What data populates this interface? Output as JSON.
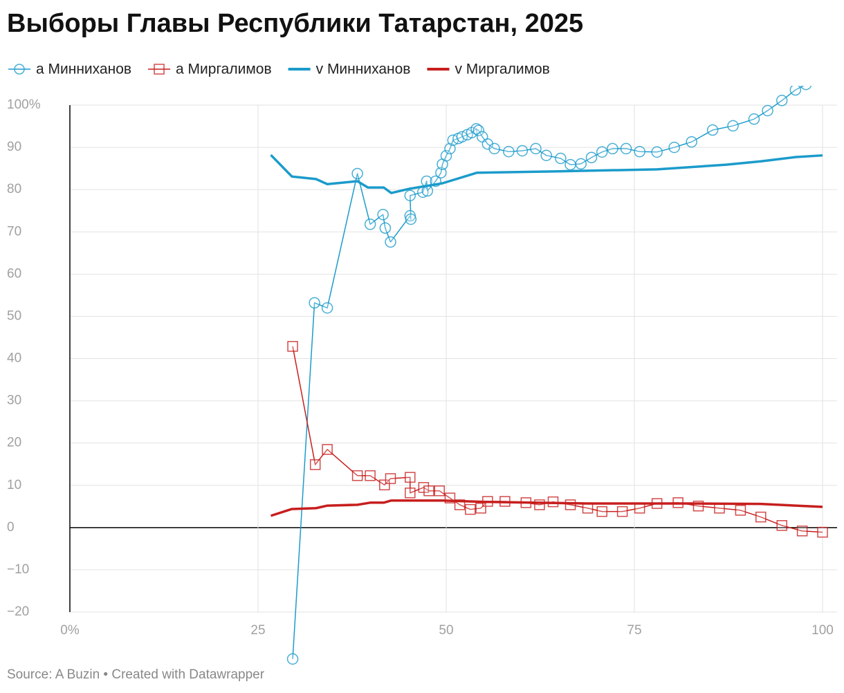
{
  "chart_data": {
    "type": "line",
    "title": "Выборы Главы Республики Татарстан, 2025",
    "source": "Source: A Buzin • Created with Datawrapper",
    "xlim": [
      0,
      100
    ],
    "xticks": [
      {
        "value": 0,
        "label": "0%"
      },
      25,
      50,
      75,
      100
    ],
    "ylim": [
      -20,
      100
    ],
    "yticks": [
      {
        "value": -20,
        "label": "−20"
      },
      {
        "value": -10,
        "label": "−10"
      },
      0,
      10,
      20,
      30,
      40,
      50,
      60,
      70,
      80,
      90,
      {
        "value": 100,
        "label": "100%"
      }
    ],
    "grid": true,
    "legend": "top",
    "series": [
      {
        "name": "а Минниханов",
        "color": "#1b9bcb",
        "marker": "circle",
        "x": [
          29.6,
          32.5,
          34.2,
          38.2,
          39.9,
          41.6,
          41.9,
          42.6,
          45.2,
          45.3,
          45.2,
          46.9,
          47.4,
          47.5,
          48.6,
          49.3,
          49.5,
          50,
          50.5,
          50.9,
          51.6,
          52.1,
          52.8,
          53.4,
          54,
          54.3,
          54.8,
          55.5,
          56.4,
          58.3,
          60.1,
          61.9,
          63.3,
          65.2,
          66.5,
          67.9,
          69.3,
          70.7,
          72.1,
          73.9,
          75.7,
          78,
          80.3,
          82.6,
          85.4,
          88.1,
          90.9,
          92.7,
          94.6,
          96.4,
          97.8
        ],
        "values": [
          -31.1,
          53.2,
          52.0,
          83.8,
          71.8,
          74.1,
          70.9,
          67.6,
          73.8,
          73.0,
          78.6,
          79.4,
          82,
          79.7,
          82,
          84,
          86,
          88,
          89.7,
          91.7,
          92.1,
          92.5,
          93,
          93.5,
          94.4,
          94,
          92.5,
          90.8,
          89.7,
          89,
          89.2,
          89.7,
          88.1,
          87.4,
          85.9,
          86.1,
          87.6,
          88.9,
          89.7,
          89.7,
          89,
          88.9,
          90,
          91.3,
          94.1,
          95.1,
          96.7,
          98.7,
          101.1,
          103.6,
          104.9
        ]
      },
      {
        "name": "а Миргалимов",
        "color": "#c71e1d",
        "marker": "square",
        "x": [
          29.6,
          32.6,
          34.2,
          38.2,
          39.9,
          41.8,
          42.6,
          45.2,
          45.2,
          47,
          47.7,
          49.1,
          50.5,
          51.8,
          53.2,
          54.6,
          55.5,
          57.8,
          60.6,
          62.4,
          64.2,
          66.5,
          68.8,
          70.7,
          73.4,
          75.7,
          78,
          80.8,
          83.5,
          86.3,
          89.1,
          91.8,
          94.6,
          97.3,
          100
        ],
        "values": [
          42.9,
          14.9,
          18.5,
          12.3,
          12.3,
          10.1,
          11.6,
          11.9,
          8.2,
          9.5,
          8.7,
          8.7,
          7,
          5.4,
          4.3,
          4.6,
          6.2,
          6.2,
          5.9,
          5.4,
          6.1,
          5.4,
          4.6,
          3.8,
          3.8,
          4.6,
          5.7,
          5.9,
          5.1,
          4.6,
          4.1,
          2.5,
          0.5,
          -0.8,
          -1.1
        ]
      },
      {
        "name": "v Минниханов",
        "color": "#1b9bcb",
        "x": [
          26.7,
          29.5,
          32.7,
          34.2,
          38.2,
          39.6,
          41.7,
          42.7,
          45.1,
          49.5,
          54.1,
          64.2,
          78,
          87.2,
          91.8,
          96.4,
          100
        ],
        "values": [
          88.2,
          83.1,
          82.5,
          81.3,
          82,
          80.5,
          80.5,
          79.2,
          80.2,
          81.5,
          84,
          84.3,
          84.8,
          85.9,
          86.7,
          87.7,
          88.1
        ]
      },
      {
        "name": "v Миргалимов",
        "color": "#c71e1d",
        "x": [
          26.7,
          29.5,
          32.7,
          34.2,
          38.2,
          39.9,
          41.7,
          42.7,
          45.1,
          49.5,
          55,
          68.8,
          82.6,
          91.8,
          100
        ],
        "values": [
          2.8,
          4.4,
          4.6,
          5.2,
          5.4,
          5.9,
          5.9,
          6.4,
          6.4,
          6.4,
          6.1,
          5.7,
          5.7,
          5.6,
          4.9
        ]
      }
    ]
  }
}
